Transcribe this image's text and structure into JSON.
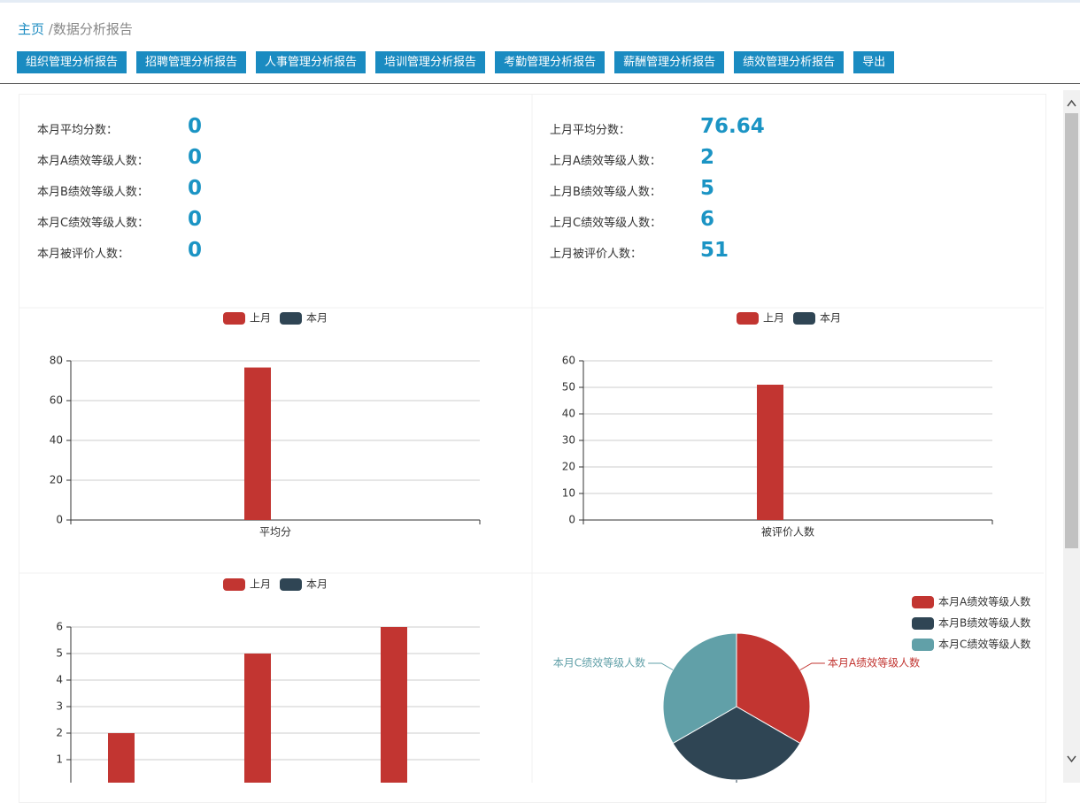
{
  "breadcrumb": {
    "home": "主页",
    "current": "/数据分析报告"
  },
  "tabs": [
    "组织管理分析报告",
    "招聘管理分析报告",
    "人事管理分析报告",
    "培训管理分析报告",
    "考勤管理分析报告",
    "薪酬管理分析报告",
    "绩效管理分析报告",
    "导出"
  ],
  "stats": {
    "current": [
      {
        "label": "本月平均分数：",
        "value": 0
      },
      {
        "label": "本月A绩效等级人数：",
        "value": 0
      },
      {
        "label": "本月B绩效等级人数：",
        "value": 0
      },
      {
        "label": "本月C绩效等级人数：",
        "value": 0
      },
      {
        "label": "本月被评价人数：",
        "value": 0
      }
    ],
    "previous": [
      {
        "label": "上月平均分数：",
        "value": 76.64
      },
      {
        "label": "上月A绩效等级人数：",
        "value": 2
      },
      {
        "label": "上月B绩效等级人数：",
        "value": 5
      },
      {
        "label": "上月C绩效等级人数：",
        "value": 6
      },
      {
        "label": "上月被评价人数：",
        "value": 51
      }
    ]
  },
  "chart_data": [
    {
      "type": "bar",
      "categories": [
        "平均分"
      ],
      "series": [
        {
          "name": "上月",
          "color": "#c23531",
          "values": [
            76.64
          ]
        },
        {
          "name": "本月",
          "color": "#2f4554",
          "values": [
            0
          ]
        }
      ],
      "ylim": [
        0,
        80
      ],
      "yticks": [
        0,
        20,
        40,
        60,
        80
      ],
      "grid": true
    },
    {
      "type": "bar",
      "categories": [
        "被评价人数"
      ],
      "series": [
        {
          "name": "上月",
          "color": "#c23531",
          "values": [
            51
          ]
        },
        {
          "name": "本月",
          "color": "#2f4554",
          "values": [
            0
          ]
        }
      ],
      "ylim": [
        0,
        60
      ],
      "yticks": [
        0,
        10,
        20,
        30,
        40,
        50,
        60
      ],
      "grid": true
    },
    {
      "type": "bar",
      "categories": [
        null,
        null,
        null
      ],
      "series": [
        {
          "name": "上月",
          "color": "#c23531",
          "values": [
            2,
            5,
            6
          ]
        },
        {
          "name": "本月",
          "color": "#2f4554",
          "values": [
            0,
            0,
            0
          ]
        }
      ],
      "ylim": [
        0,
        6
      ],
      "yticks": [
        1,
        2,
        3,
        4,
        5,
        6
      ],
      "grid": true
    },
    {
      "type": "pie",
      "categories": [
        "本月A绩效等级人数",
        "本月B绩效等级人数",
        "本月C绩效等级人数"
      ],
      "values": [
        33.3,
        33.3,
        33.3
      ],
      "colors": [
        "#c23531",
        "#2f4554",
        "#61a0a8"
      ]
    }
  ]
}
